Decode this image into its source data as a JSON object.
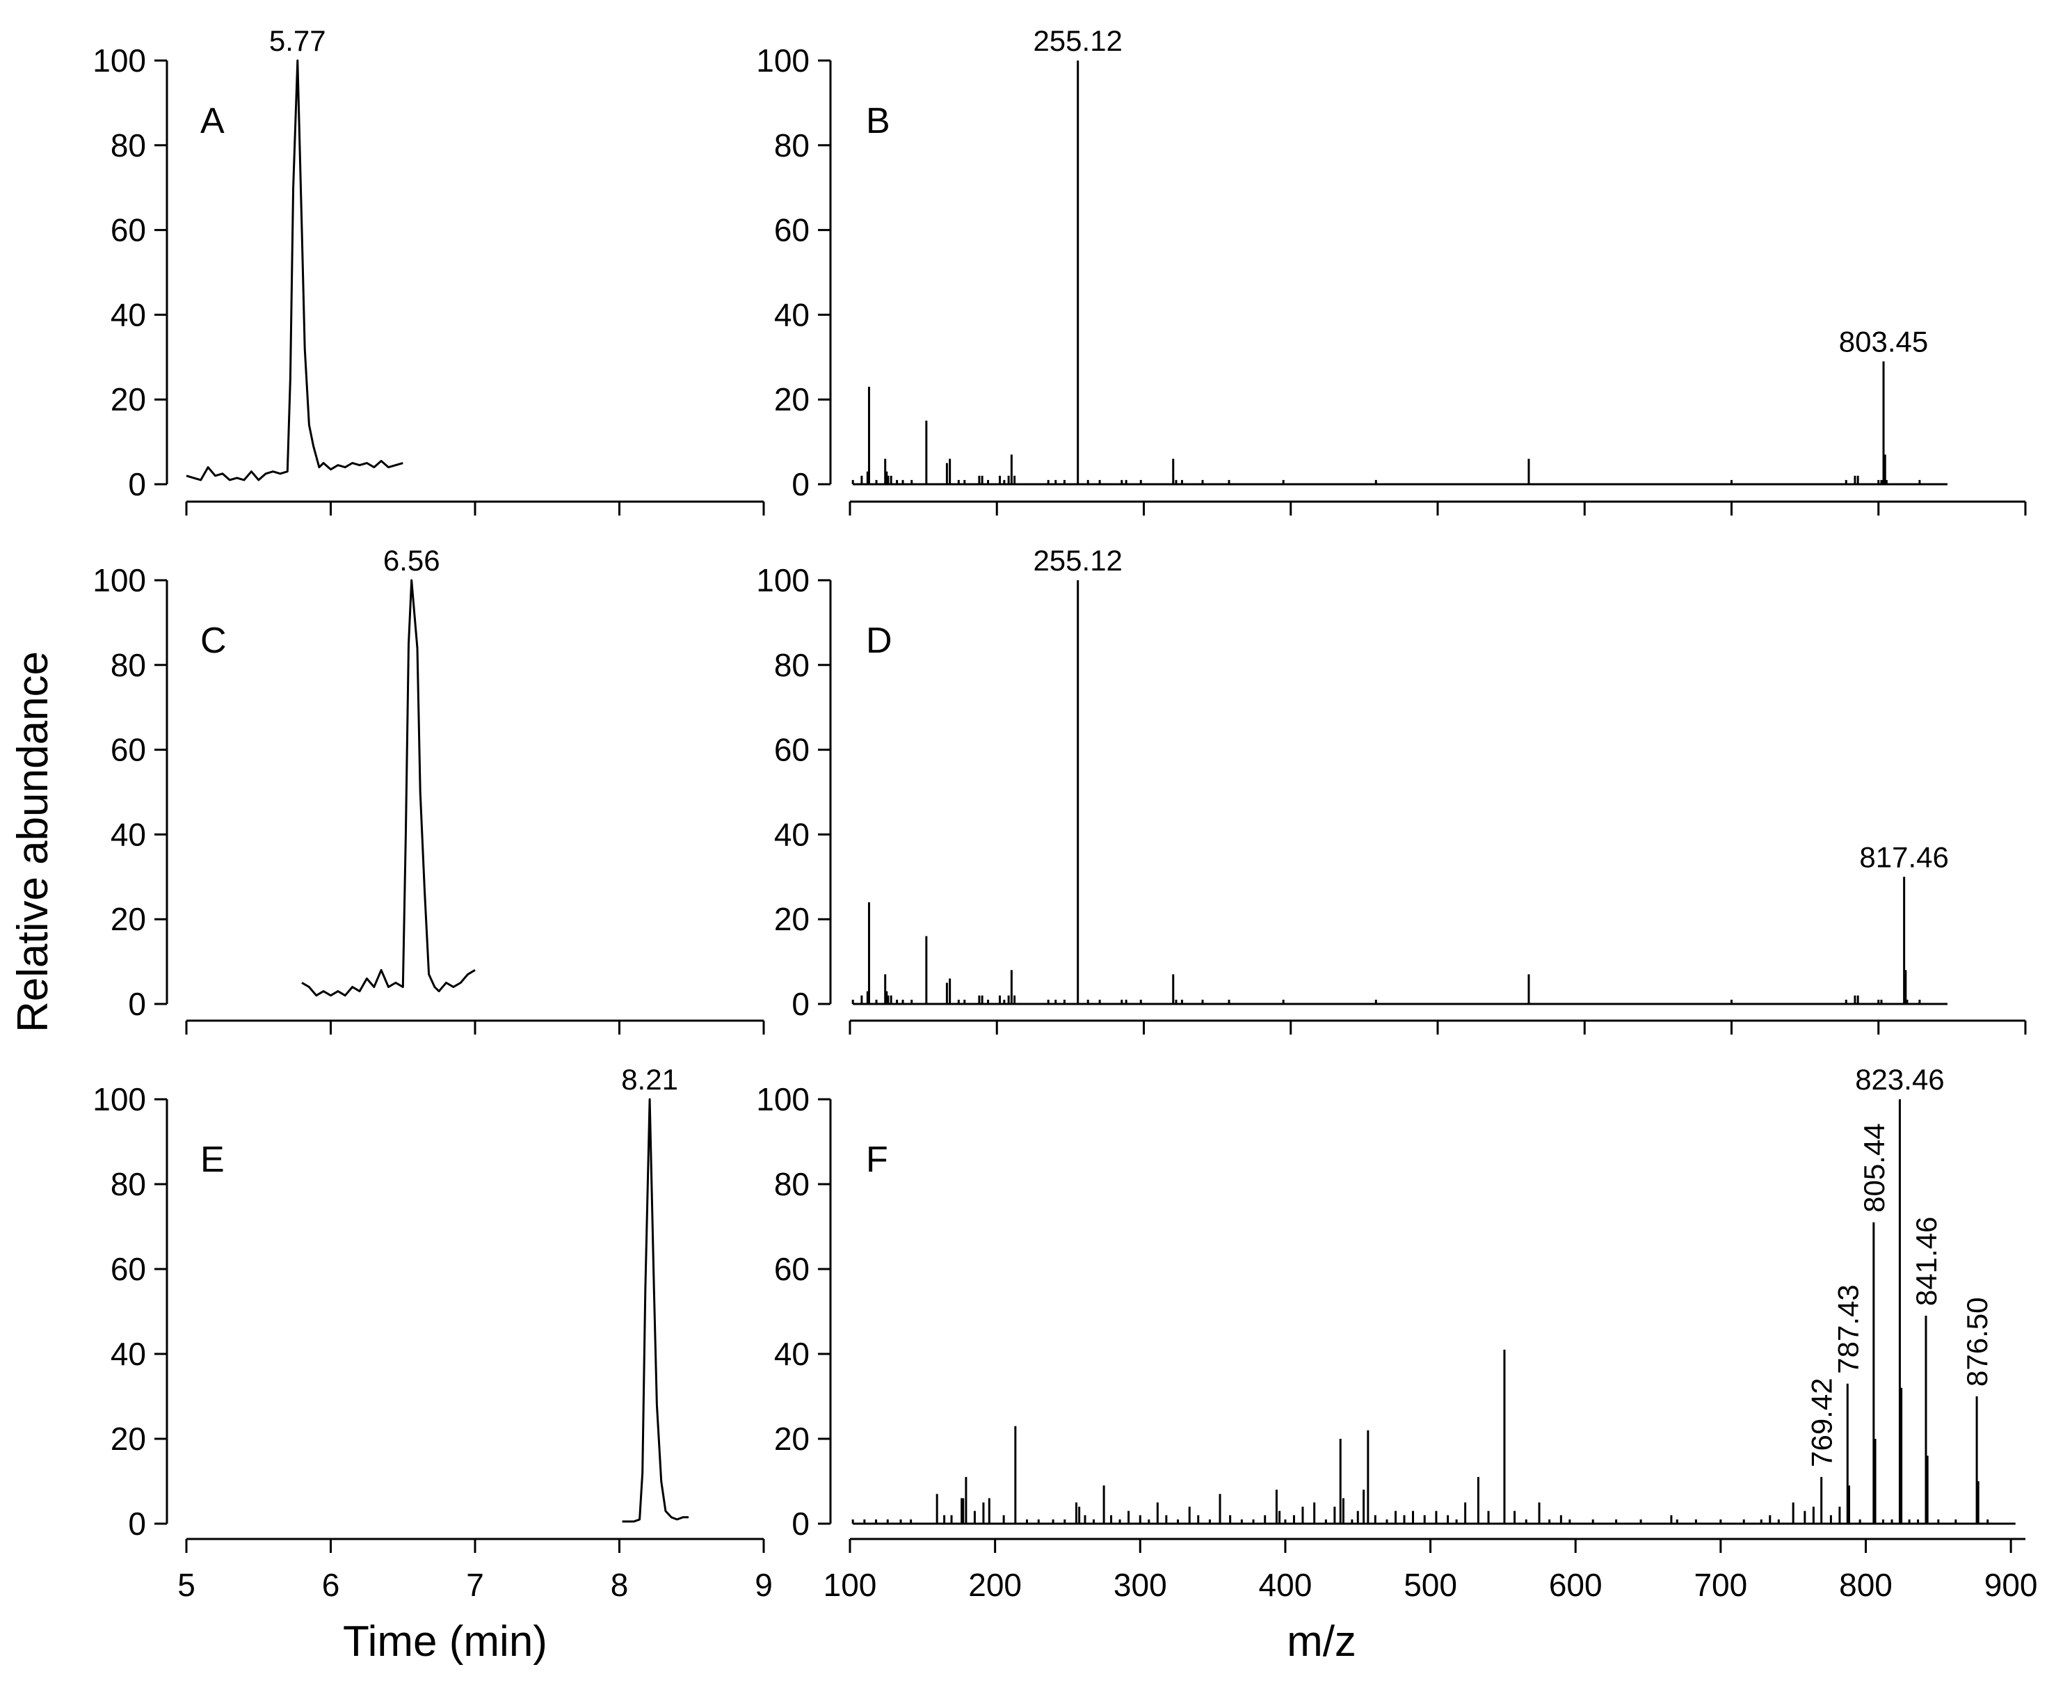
{
  "figure": {
    "ylabel": "Relative abundance",
    "xlabel_time": "Time (min)",
    "xlabel_mz": "m/z"
  },
  "chart_data": [
    {
      "panel": "A",
      "type": "line",
      "xlabel": "",
      "ylabel": "Relative abundance",
      "xlim": [
        5,
        9
      ],
      "ylim": [
        0,
        100
      ],
      "xticks": [
        5,
        6,
        7,
        8,
        9
      ],
      "yticks": [
        0,
        20,
        40,
        60,
        80,
        100
      ],
      "show_x_tick_labels": false,
      "series": [
        {
          "x": [
            5.0,
            5.05,
            5.1,
            5.15,
            5.2,
            5.25,
            5.3,
            5.35,
            5.4,
            5.45,
            5.5,
            5.55,
            5.6,
            5.65,
            5.7,
            5.72,
            5.74,
            5.77,
            5.8,
            5.82,
            5.85,
            5.88,
            5.92,
            5.95,
            6.0,
            6.05,
            6.1,
            6.15,
            6.2,
            6.25,
            6.3,
            6.35,
            6.4,
            6.45,
            6.5
          ],
          "y": [
            2,
            1.5,
            1,
            4,
            2,
            2.5,
            1,
            1.5,
            1,
            3,
            1,
            2.5,
            3,
            2.5,
            3,
            25,
            70,
            100,
            60,
            32,
            14,
            9,
            4,
            5,
            3.5,
            4.5,
            4,
            5,
            4.5,
            5,
            4,
            5.5,
            4,
            4.5,
            5
          ]
        }
      ],
      "annotations": [
        {
          "x": 5.77,
          "y": 100,
          "text": "5.77"
        }
      ]
    },
    {
      "panel": "B",
      "type": "bar",
      "xlabel": "",
      "ylabel": "",
      "xlim": [
        100,
        900
      ],
      "ylim": [
        0,
        100
      ],
      "xticks": [
        100,
        200,
        300,
        400,
        500,
        600,
        700,
        800,
        900
      ],
      "yticks": [
        0,
        20,
        40,
        60,
        80,
        100
      ],
      "show_x_tick_labels": false,
      "x": [
        102,
        108,
        112,
        113,
        118,
        124,
        125,
        126,
        128,
        132,
        136,
        142,
        152,
        166,
        168,
        174,
        178,
        188,
        190,
        194,
        202,
        205,
        208,
        210,
        212,
        235,
        240,
        246,
        255.12,
        262,
        270,
        285,
        288,
        298,
        320,
        322,
        326,
        340,
        358,
        395,
        458,
        562,
        700,
        778,
        784,
        786,
        800,
        802,
        803.45,
        804.5,
        805.5,
        828
      ],
      "values": [
        1,
        2,
        3,
        23,
        1,
        6,
        3,
        2,
        2,
        1,
        1,
        1,
        15,
        5,
        6,
        1,
        1,
        2,
        2,
        1,
        2,
        1,
        2,
        7,
        2,
        1,
        1,
        1,
        100,
        1,
        1,
        1,
        1,
        1,
        6,
        1,
        1,
        1,
        1,
        1,
        1,
        6,
        1,
        1,
        2,
        2,
        1,
        1,
        29,
        7,
        1,
        1
      ],
      "annotations": [
        {
          "x": 255.12,
          "y": 100,
          "text": "255.12"
        },
        {
          "x": 803.45,
          "y": 29,
          "text": "803.45"
        }
      ]
    },
    {
      "panel": "C",
      "type": "line",
      "xlabel": "",
      "ylabel": "Relative abundance",
      "xlim": [
        5,
        9
      ],
      "ylim": [
        0,
        100
      ],
      "xticks": [
        5,
        6,
        7,
        8,
        9
      ],
      "yticks": [
        0,
        20,
        40,
        60,
        80,
        100
      ],
      "show_x_tick_labels": false,
      "series": [
        {
          "x": [
            5.8,
            5.85,
            5.9,
            5.95,
            6.0,
            6.05,
            6.1,
            6.15,
            6.2,
            6.25,
            6.3,
            6.35,
            6.4,
            6.45,
            6.5,
            6.52,
            6.54,
            6.56,
            6.6,
            6.62,
            6.65,
            6.68,
            6.72,
            6.75,
            6.8,
            6.85,
            6.9,
            6.95,
            7.0
          ],
          "y": [
            5,
            4,
            2,
            3,
            2,
            3,
            2,
            4,
            3,
            6,
            4,
            8,
            4,
            5,
            4,
            40,
            85,
            100,
            84,
            50,
            27,
            7,
            4,
            3,
            5,
            4,
            5,
            7,
            8
          ]
        }
      ],
      "annotations": [
        {
          "x": 6.56,
          "y": 100,
          "text": "6.56"
        }
      ]
    },
    {
      "panel": "D",
      "type": "bar",
      "xlabel": "",
      "ylabel": "",
      "xlim": [
        100,
        900
      ],
      "ylim": [
        0,
        100
      ],
      "xticks": [
        100,
        200,
        300,
        400,
        500,
        600,
        700,
        800,
        900
      ],
      "yticks": [
        0,
        20,
        40,
        60,
        80,
        100
      ],
      "show_x_tick_labels": false,
      "x": [
        102,
        108,
        112,
        113,
        118,
        124,
        125,
        126,
        128,
        132,
        136,
        142,
        152,
        166,
        168,
        174,
        178,
        188,
        190,
        194,
        202,
        205,
        208,
        210,
        212,
        235,
        240,
        246,
        255.12,
        262,
        270,
        285,
        288,
        298,
        320,
        322,
        326,
        340,
        358,
        395,
        458,
        562,
        700,
        778,
        784,
        786,
        800,
        802,
        817.46,
        818.5,
        819.5,
        828
      ],
      "values": [
        1,
        2,
        3,
        24,
        1,
        7,
        3,
        2,
        2,
        1,
        1,
        1,
        16,
        5,
        6,
        1,
        1,
        2,
        2,
        1,
        2,
        1,
        2,
        8,
        2,
        1,
        1,
        1,
        100,
        1,
        1,
        1,
        1,
        1,
        7,
        1,
        1,
        1,
        1,
        1,
        1,
        7,
        1,
        1,
        2,
        2,
        1,
        1,
        30,
        8,
        1,
        1
      ],
      "annotations": [
        {
          "x": 255.12,
          "y": 100,
          "text": "255.12"
        },
        {
          "x": 817.46,
          "y": 30,
          "text": "817.46"
        }
      ]
    },
    {
      "panel": "E",
      "type": "line",
      "xlabel": "Time (min)",
      "ylabel": "Relative abundance",
      "xlim": [
        5,
        9
      ],
      "ylim": [
        0,
        100
      ],
      "xticks": [
        5,
        6,
        7,
        8,
        9
      ],
      "yticks": [
        0,
        20,
        40,
        60,
        80,
        100
      ],
      "show_x_tick_labels": true,
      "series": [
        {
          "x": [
            8.02,
            8.06,
            8.1,
            8.14,
            8.16,
            8.18,
            8.21,
            8.24,
            8.26,
            8.29,
            8.32,
            8.36,
            8.4,
            8.44,
            8.48
          ],
          "y": [
            0.5,
            0.5,
            0.5,
            1,
            12,
            55,
            100,
            55,
            28,
            10,
            3,
            1.5,
            1,
            1.5,
            1.5
          ]
        }
      ],
      "annotations": [
        {
          "x": 8.21,
          "y": 100,
          "text": "8.21"
        }
      ]
    },
    {
      "panel": "F",
      "type": "bar",
      "xlabel": "m/z",
      "ylabel": "",
      "xlim": [
        100,
        910
      ],
      "ylim": [
        0,
        100
      ],
      "xticks": [
        100,
        200,
        300,
        400,
        500,
        600,
        700,
        800,
        900
      ],
      "yticks": [
        0,
        20,
        40,
        60,
        80,
        100
      ],
      "show_x_tick_labels": true,
      "x": [
        102,
        110,
        118,
        126,
        135,
        142,
        160,
        165,
        170,
        177,
        178,
        180,
        186,
        192,
        196,
        206,
        214,
        222,
        230,
        240,
        248,
        256,
        258,
        262,
        268,
        275,
        280,
        286,
        292,
        300,
        306,
        312,
        318,
        326,
        334,
        340,
        348,
        355,
        362,
        370,
        378,
        386,
        394,
        396,
        400,
        406,
        412,
        420,
        428,
        434,
        438,
        440,
        446,
        450,
        454,
        457,
        462,
        470,
        476,
        482,
        488,
        496,
        504,
        512,
        518,
        524,
        533,
        540,
        551,
        558,
        566,
        575,
        582,
        590,
        596,
        612,
        628,
        645,
        666,
        670,
        683,
        700,
        716,
        728,
        734,
        740,
        750,
        758,
        764,
        769.42,
        776,
        782,
        787.43,
        788.5,
        796,
        805.44,
        806.5,
        812,
        818,
        823.46,
        824.5,
        830,
        836,
        841.46,
        842.5,
        850,
        862,
        876.5,
        877.5,
        884
      ],
      "values": [
        1,
        1,
        1,
        1,
        1,
        1,
        7,
        2,
        2,
        6,
        6,
        11,
        3,
        5,
        6,
        2,
        23,
        1,
        1,
        1,
        1,
        5,
        4,
        2,
        1,
        9,
        2,
        1,
        3,
        2,
        1,
        5,
        2,
        1,
        4,
        2,
        1,
        7,
        2,
        1,
        1,
        2,
        8,
        3,
        1,
        2,
        4,
        5,
        1,
        4,
        20,
        6,
        1,
        3,
        8,
        22,
        2,
        1,
        3,
        2,
        3,
        2,
        3,
        2,
        1,
        5,
        11,
        3,
        41,
        3,
        1,
        5,
        1,
        2,
        1,
        1,
        1,
        1,
        2,
        1,
        1,
        1,
        1,
        1,
        2,
        1,
        5,
        3,
        4,
        11,
        2,
        4,
        33,
        9,
        1,
        71,
        20,
        1,
        1,
        100,
        32,
        1,
        1,
        49,
        16,
        1,
        1,
        30,
        10,
        1
      ],
      "annotations": [
        {
          "x": 769.42,
          "y": 11,
          "text": "769.42",
          "rotate": true
        },
        {
          "x": 787.43,
          "y": 33,
          "text": "787.43",
          "rotate": true
        },
        {
          "x": 805.44,
          "y": 71,
          "text": "805.44",
          "rotate": true
        },
        {
          "x": 823.46,
          "y": 100,
          "text": "823.46",
          "rotate": false
        },
        {
          "x": 841.46,
          "y": 49,
          "text": "841.46",
          "rotate": true
        },
        {
          "x": 876.5,
          "y": 30,
          "text": "876.50",
          "rotate": true
        }
      ]
    }
  ]
}
